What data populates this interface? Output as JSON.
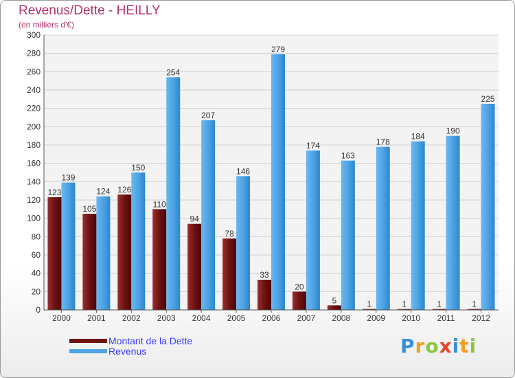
{
  "title": "Revenus/Dette - HEILLY",
  "subtitle": "(en milliers d'€)",
  "colors": {
    "debt": "#7a1a1a",
    "revenue": "#4da3e4",
    "title": "#b5306f",
    "legend_text": "#3a3aff"
  },
  "legend": [
    {
      "label": "Montant de la Dette",
      "color": "#7a1a1a"
    },
    {
      "label": "Revenus",
      "color": "#4da3e4"
    }
  ],
  "logo": {
    "text": "Proxiti"
  },
  "chart_data": {
    "type": "bar",
    "title": "Revenus/Dette - HEILLY",
    "subtitle": "(en milliers d'€)",
    "categories": [
      "2000",
      "2001",
      "2002",
      "2003",
      "2004",
      "2005",
      "2006",
      "2007",
      "2008",
      "2009",
      "2010",
      "2011",
      "2012"
    ],
    "series": [
      {
        "name": "Montant de la Dette",
        "values": [
          123,
          105,
          126,
          110,
          94,
          78,
          33,
          20,
          5,
          1,
          1,
          1,
          1
        ]
      },
      {
        "name": "Revenus",
        "values": [
          139,
          124,
          150,
          254,
          207,
          146,
          279,
          174,
          163,
          178,
          184,
          190,
          225
        ]
      }
    ],
    "ylim": [
      0,
      300
    ],
    "yticks": [
      0,
      20,
      40,
      60,
      80,
      100,
      120,
      140,
      160,
      180,
      200,
      220,
      240,
      260,
      280,
      300
    ],
    "grid": true,
    "legend_position": "bottom-left"
  }
}
